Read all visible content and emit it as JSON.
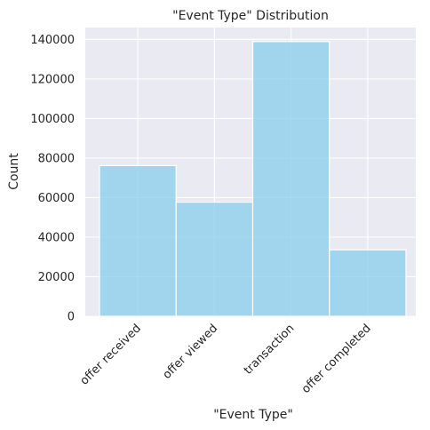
{
  "chart_data": {
    "type": "bar",
    "title": "\"Event Type\" Distribution",
    "xlabel": "\"Event Type\"",
    "ylabel": "Count",
    "categories": [
      "offer received",
      "offer viewed",
      "transaction",
      "offer completed"
    ],
    "values": [
      76200,
      57700,
      138900,
      33600
    ],
    "ylim": [
      0,
      146000
    ],
    "yticks": [
      0,
      20000,
      40000,
      60000,
      80000,
      100000,
      120000,
      140000
    ],
    "yticklabels": [
      "0",
      "20000",
      "40000",
      "60000",
      "80000",
      "100000",
      "120000",
      "140000"
    ],
    "grid": true,
    "colors": {
      "bar": "#87ceeb",
      "background": "#eaeaf2",
      "grid": "#ffffff"
    }
  }
}
